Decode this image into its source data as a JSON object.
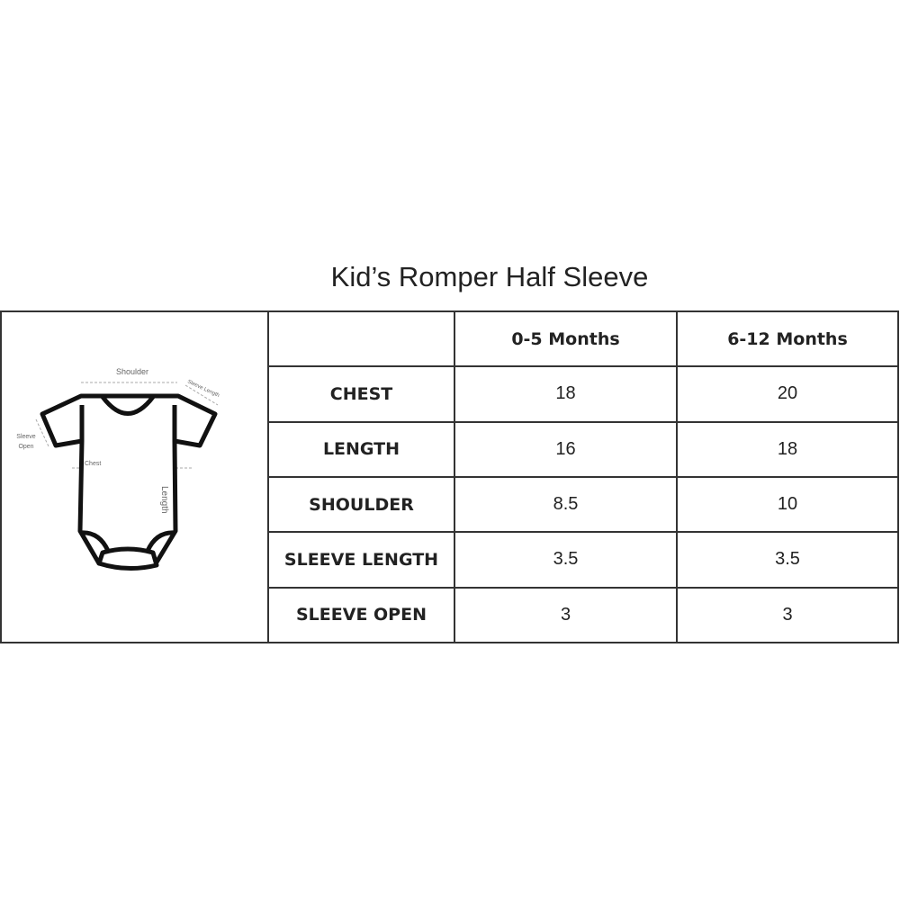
{
  "title": "Kid’s Romper Half Sleeve",
  "diagram": {
    "shoulder": "Shoulder",
    "sleeve_length": "Sleeve Length",
    "sleeve_open_1": "Sleeve",
    "sleeve_open_2": "Open",
    "chest": "Chest",
    "length": "Length"
  },
  "table": {
    "columns": [
      "",
      "0-5 Months",
      "6-12 Months"
    ],
    "rows": [
      {
        "label": "CHEST",
        "values": [
          "18",
          "20"
        ]
      },
      {
        "label": "LENGTH",
        "values": [
          "16",
          "18"
        ]
      },
      {
        "label": "SHOULDER",
        "values": [
          "8.5",
          "10"
        ]
      },
      {
        "label": "SLEEVE LENGTH",
        "values": [
          "3.5",
          "3.5"
        ]
      },
      {
        "label": "SLEEVE OPEN",
        "values": [
          "3",
          "3"
        ]
      }
    ]
  }
}
